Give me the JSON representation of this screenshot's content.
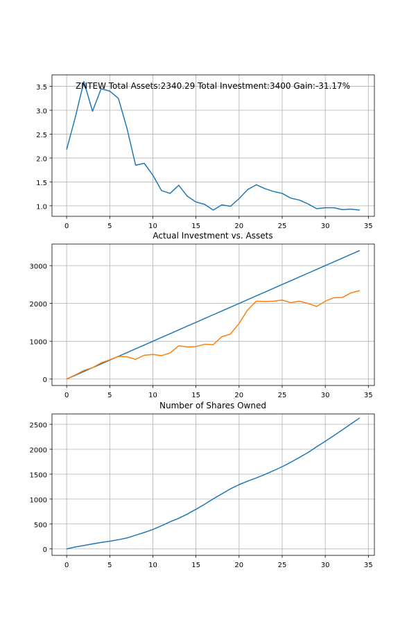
{
  "chart_data": [
    {
      "type": "line",
      "title": "ZNTEW Total Assets:2340.29  Total Investment:3400  Gain:-31.17%",
      "xlabel": "",
      "ylabel": "",
      "grid": true,
      "xlim": [
        -1.7,
        35.7
      ],
      "ylim": [
        0.78,
        3.74
      ],
      "xticks": [
        0,
        5,
        10,
        15,
        20,
        25,
        30,
        35
      ],
      "yticks": [
        1.0,
        1.5,
        2.0,
        2.5,
        3.0,
        3.5
      ],
      "ytick_decimals": 1,
      "series": [
        {
          "color": "#1f77b4",
          "x": [
            0,
            1,
            2,
            3,
            4,
            5,
            6,
            7,
            8,
            9,
            10,
            11,
            12,
            13,
            14,
            15,
            16,
            17,
            18,
            19,
            20,
            21,
            22,
            23,
            24,
            25,
            26,
            27,
            28,
            29,
            30,
            31,
            32,
            33,
            34
          ],
          "values": [
            2.18,
            2.85,
            3.6,
            2.98,
            3.45,
            3.4,
            3.25,
            2.62,
            1.85,
            1.89,
            1.64,
            1.32,
            1.26,
            1.43,
            1.2,
            1.08,
            1.03,
            0.91,
            1.02,
            0.99,
            1.15,
            1.34,
            1.44,
            1.36,
            1.3,
            1.26,
            1.16,
            1.12,
            1.04,
            0.94,
            0.96,
            0.96,
            0.92,
            0.93,
            0.91
          ]
        }
      ]
    },
    {
      "type": "line",
      "title": "Actual Investment vs. Assets",
      "xlabel": "",
      "ylabel": "",
      "grid": true,
      "xlim": [
        -1.7,
        35.7
      ],
      "ylim": [
        -170,
        3570
      ],
      "xticks": [
        0,
        5,
        10,
        15,
        20,
        25,
        30,
        35
      ],
      "yticks": [
        0,
        1000,
        2000,
        3000
      ],
      "ytick_decimals": 0,
      "series": [
        {
          "color": "#1f77b4",
          "x": [
            0,
            1,
            2,
            3,
            4,
            5,
            6,
            7,
            8,
            9,
            10,
            11,
            12,
            13,
            14,
            15,
            16,
            17,
            18,
            19,
            20,
            21,
            22,
            23,
            24,
            25,
            26,
            27,
            28,
            29,
            30,
            31,
            32,
            33,
            34
          ],
          "values": [
            0,
            100,
            200,
            300,
            400,
            500,
            600,
            700,
            800,
            900,
            1000,
            1100,
            1200,
            1300,
            1400,
            1500,
            1600,
            1700,
            1800,
            1900,
            2000,
            2100,
            2200,
            2300,
            2400,
            2500,
            2600,
            2700,
            2800,
            2900,
            3000,
            3100,
            3200,
            3300,
            3400
          ]
        },
        {
          "color": "#ff7f0e",
          "x": [
            0,
            1,
            2,
            3,
            4,
            5,
            6,
            7,
            8,
            9,
            10,
            11,
            12,
            13,
            14,
            15,
            16,
            17,
            18,
            19,
            20,
            21,
            22,
            23,
            24,
            25,
            26,
            27,
            28,
            29,
            30,
            31,
            32,
            33,
            34
          ],
          "values": [
            0,
            110,
            230,
            300,
            430,
            510,
            600,
            590,
            520,
            630,
            650,
            620,
            690,
            880,
            850,
            860,
            920,
            910,
            1120,
            1190,
            1470,
            1830,
            2060,
            2050,
            2060,
            2090,
            2020,
            2060,
            2000,
            1920,
            2060,
            2150,
            2160,
            2280,
            2340
          ]
        }
      ]
    },
    {
      "type": "line",
      "title": "Number of Shares Owned",
      "xlabel": "",
      "ylabel": "",
      "grid": true,
      "xlim": [
        -1.7,
        35.7
      ],
      "ylim": [
        -129,
        2709
      ],
      "xticks": [
        0,
        5,
        10,
        15,
        20,
        25,
        30,
        35
      ],
      "yticks": [
        0,
        500,
        1000,
        1500,
        2000,
        2500
      ],
      "ytick_decimals": 0,
      "series": [
        {
          "color": "#1f77b4",
          "x": [
            0,
            1,
            2,
            3,
            4,
            5,
            6,
            7,
            8,
            9,
            10,
            11,
            12,
            13,
            14,
            15,
            16,
            17,
            18,
            19,
            20,
            21,
            22,
            23,
            24,
            25,
            26,
            27,
            28,
            29,
            30,
            31,
            32,
            33,
            34
          ],
          "values": [
            0,
            40,
            70,
            100,
            130,
            155,
            185,
            220,
            275,
            330,
            390,
            465,
            545,
            615,
            700,
            795,
            895,
            1005,
            1105,
            1205,
            1290,
            1360,
            1425,
            1495,
            1570,
            1650,
            1740,
            1835,
            1935,
            2050,
            2160,
            2275,
            2390,
            2510,
            2630
          ]
        }
      ]
    }
  ]
}
